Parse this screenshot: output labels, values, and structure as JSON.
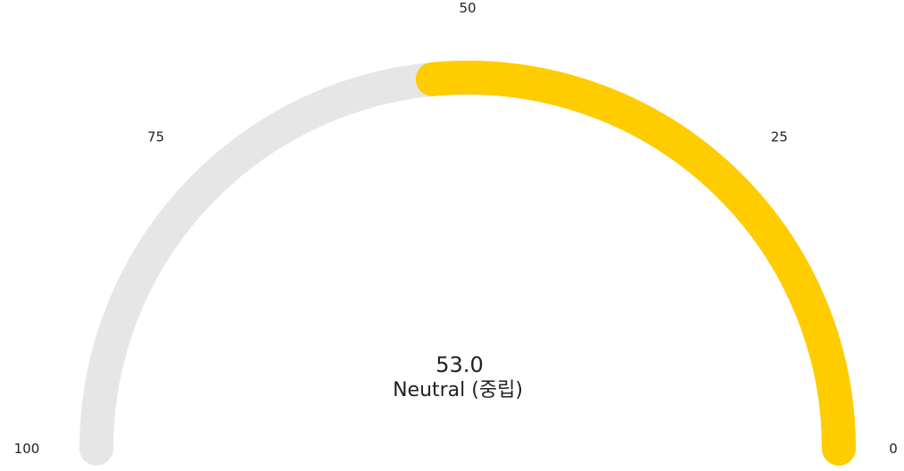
{
  "chart_data": {
    "type": "gauge",
    "min": 0,
    "max": 100,
    "value": 53.0,
    "value_label": "53.0",
    "status_label": "Neutral (중립)",
    "direction": "right-to-left",
    "ticks": [
      {
        "value": 0,
        "label": "0"
      },
      {
        "value": 25,
        "label": "25"
      },
      {
        "value": 50,
        "label": "50"
      },
      {
        "value": 75,
        "label": "75"
      },
      {
        "value": 100,
        "label": "100"
      }
    ],
    "colors": {
      "track": "#e6e6e6",
      "fill": "#ffcc00",
      "text": "#222222"
    }
  }
}
